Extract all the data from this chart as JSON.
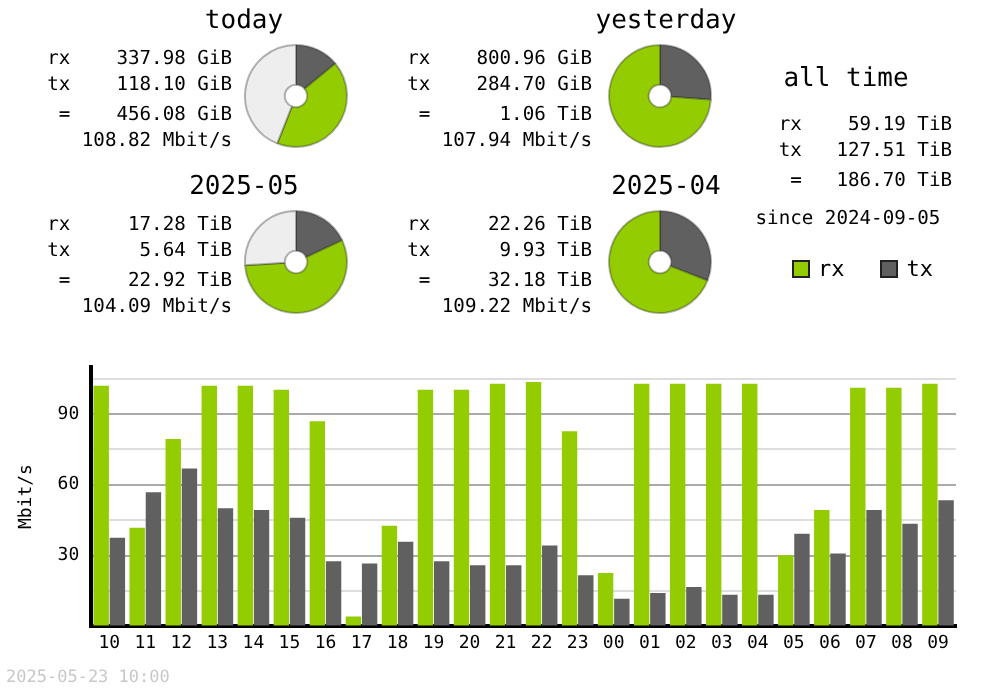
{
  "chart_data": [
    {
      "type": "donut",
      "title": "today",
      "categories": [
        null,
        null,
        null
      ],
      "values": [
        14,
        42,
        44
      ],
      "colors": [
        "#606060",
        "#93cc00",
        "#eeeeee"
      ],
      "annotations": [
        "rx    337.98 GiB",
        "tx    118.10 GiB",
        " =    456.08 GiB",
        "108.82 Mbit/s"
      ]
    },
    {
      "type": "donut",
      "title": "yesterday",
      "categories": [
        null,
        null
      ],
      "values": [
        26.2,
        73.8
      ],
      "colors": [
        "#606060",
        "#93cc00"
      ],
      "annotations": [
        "rx    800.96 GiB",
        "tx    284.70 GiB",
        " =      1.06 TiB",
        "107.94 Mbit/s"
      ]
    },
    {
      "type": "donut",
      "title": "2025-05",
      "categories": [
        null,
        null,
        null
      ],
      "values": [
        18,
        56,
        26
      ],
      "colors": [
        "#606060",
        "#93cc00",
        "#eeeeee"
      ],
      "annotations": [
        "rx     17.28 TiB",
        "tx      5.64 TiB",
        " =     22.92 TiB",
        "104.09 Mbit/s"
      ]
    },
    {
      "type": "donut",
      "title": "2025-04",
      "categories": [
        null,
        null
      ],
      "values": [
        30.9,
        69.1
      ],
      "colors": [
        "#606060",
        "#93cc00"
      ],
      "annotations": [
        "rx     22.26 TiB",
        "tx      9.93 TiB",
        " =     32.18 TiB",
        "109.22 Mbit/s"
      ]
    },
    {
      "type": "other",
      "title": "all time",
      "annotations": [
        "rx    59.19 TiB",
        "tx   127.51 TiB",
        " =   186.70 TiB",
        "since 2024-09-05"
      ]
    },
    {
      "type": "bar",
      "ylabel": "Mbit/s",
      "categories": [
        "10",
        "11",
        "12",
        "13",
        "14",
        "15",
        "16",
        "17",
        "18",
        "19",
        "20",
        "21",
        "22",
        "23",
        "00",
        "01",
        "02",
        "03",
        "04",
        "05",
        "06",
        "07",
        "08",
        "09"
      ],
      "series": [
        {
          "name": "rx",
          "color": "#93cc00",
          "values": [
            102,
            41.8,
            79.4,
            102,
            102,
            100.3,
            86.9,
            4.2,
            42.6,
            100.3,
            100.3,
            102.8,
            103.6,
            82.7,
            22.6,
            102.8,
            102.8,
            102.8,
            102.8,
            30.1,
            49.3,
            101.1,
            101.1,
            102.8
          ]
        },
        {
          "name": "tx",
          "color": "#606060",
          "values": [
            37.6,
            56.8,
            66.9,
            50.1,
            49.3,
            46,
            27.6,
            26.7,
            35.9,
            27.6,
            25.9,
            25.9,
            34.3,
            21.7,
            11.7,
            14.2,
            16.7,
            13.4,
            13.4,
            39.3,
            30.9,
            49.3,
            43.5,
            53.5
          ]
        }
      ],
      "ylim": [
        0,
        110
      ],
      "yticks": [
        {
          "value": 0,
          "label": null
        },
        {
          "value": 15,
          "label": null
        },
        30,
        {
          "value": 45,
          "label": null
        },
        60,
        {
          "value": 75,
          "label": null
        },
        90,
        {
          "value": 105,
          "label": null
        }
      ],
      "grid": "y",
      "legend": "top right",
      "annotations": [
        "2025-05-23 10:00"
      ]
    }
  ]
}
